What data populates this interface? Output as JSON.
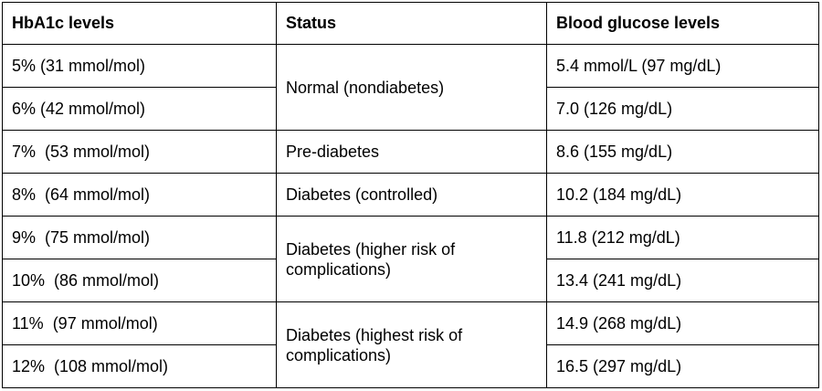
{
  "table": {
    "headers": [
      "HbA1c levels",
      "Status",
      "Blood glucose levels"
    ],
    "groups": [
      {
        "status": "Normal (nondiabetes)",
        "rows": [
          [
            "5% (31 mmol/mol)",
            "5.4 mmol/L (97 mg/dL)"
          ],
          [
            "6% (42 mmol/mol)",
            "7.0 (126 mg/dL)"
          ]
        ]
      },
      {
        "status": "Pre-diabetes",
        "rows": [
          [
            "7%  (53 mmol/mol)",
            "8.6 (155 mg/dL)"
          ]
        ]
      },
      {
        "status": "Diabetes (controlled)",
        "rows": [
          [
            "8%  (64 mmol/mol)",
            "10.2 (184 mg/dL)"
          ]
        ]
      },
      {
        "status": "Diabetes (higher risk of complications)",
        "rows": [
          [
            "9%  (75 mmol/mol)",
            "11.8 (212 mg/dL)"
          ],
          [
            "10%  (86 mmol/mol)",
            "13.4 (241 mg/dL)"
          ]
        ]
      },
      {
        "status": "Diabetes (highest risk of complications)",
        "rows": [
          [
            "11%  (97 mmol/mol)",
            "14.9 (268 mg/dL)"
          ],
          [
            "12%  (108 mmol/mol)",
            "16.5 (297 mg/dL)"
          ]
        ]
      }
    ]
  }
}
